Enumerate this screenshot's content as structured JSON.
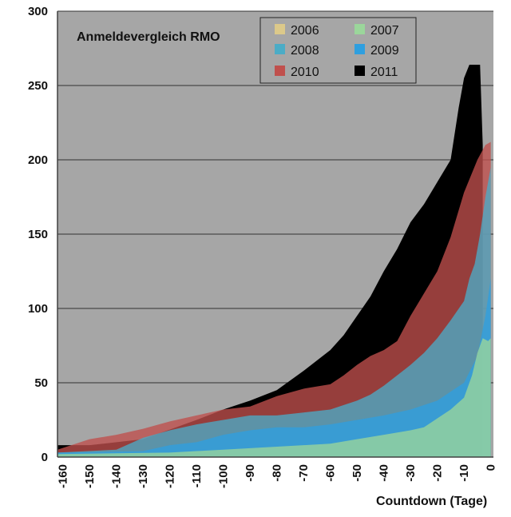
{
  "chart_data": {
    "type": "area",
    "title": "Anmeldevergleich RMO",
    "xlabel": "Countdown (Tage)",
    "ylabel": "",
    "xlim": [
      -162,
      1
    ],
    "ylim": [
      0,
      300
    ],
    "y_ticks": [
      "0",
      "50",
      "100",
      "150",
      "200",
      "250",
      "300"
    ],
    "x_ticks": [
      "-160",
      "-150",
      "-140",
      "-130",
      "-120",
      "-110",
      "-100",
      "-90",
      "-80",
      "-70",
      "-60",
      "-50",
      "-40",
      "-30",
      "-20",
      "-10",
      "0"
    ],
    "grid": true,
    "legend_position": "top-center",
    "plot_background": "#a6a6a6",
    "series": [
      {
        "name": "2011",
        "color": "#000000",
        "x": [
          -162,
          -150,
          -130,
          -110,
          -100,
          -90,
          -80,
          -70,
          -60,
          -55,
          -50,
          -45,
          -40,
          -35,
          -30,
          -25,
          -20,
          -15,
          -12,
          -10,
          -8,
          -7,
          -5,
          -4,
          -3
        ],
        "y": [
          8,
          8,
          12,
          25,
          32,
          38,
          45,
          58,
          72,
          82,
          95,
          108,
          125,
          140,
          158,
          170,
          185,
          200,
          235,
          255,
          264,
          264,
          264,
          264,
          210
        ]
      },
      {
        "name": "2010",
        "color": "#c0504d",
        "x": [
          -162,
          -150,
          -140,
          -130,
          -120,
          -110,
          -100,
          -90,
          -80,
          -70,
          -60,
          -55,
          -50,
          -45,
          -40,
          -35,
          -30,
          -25,
          -20,
          -15,
          -10,
          -5,
          -2,
          0
        ],
        "y": [
          5,
          12,
          15,
          19,
          24,
          28,
          32,
          34,
          41,
          46,
          49,
          55,
          62,
          68,
          72,
          78,
          95,
          110,
          125,
          148,
          178,
          200,
          210,
          212
        ]
      },
      {
        "name": "2008",
        "color": "#4bacc6",
        "x": [
          -162,
          -140,
          -130,
          -120,
          -110,
          -100,
          -90,
          -80,
          -70,
          -60,
          -50,
          -45,
          -40,
          -35,
          -30,
          -25,
          -20,
          -15,
          -10,
          -8,
          -6,
          -4,
          -2,
          0
        ],
        "y": [
          3,
          5,
          13,
          18,
          22,
          25,
          28,
          28,
          30,
          32,
          38,
          42,
          48,
          55,
          62,
          70,
          80,
          92,
          105,
          120,
          130,
          150,
          175,
          195
        ]
      },
      {
        "name": "2009",
        "color": "#2f9fdf",
        "x": [
          -162,
          -130,
          -120,
          -110,
          -100,
          -90,
          -80,
          -70,
          -60,
          -50,
          -40,
          -30,
          -20,
          -15,
          -10,
          -5,
          -2,
          0
        ],
        "y": [
          3,
          4,
          8,
          10,
          15,
          18,
          20,
          20,
          22,
          25,
          28,
          32,
          38,
          44,
          50,
          68,
          95,
          120
        ]
      },
      {
        "name": "2007",
        "color": "#9bd69b",
        "x": [
          -162,
          -120,
          -110,
          -100,
          -90,
          -80,
          -70,
          -60,
          -50,
          -40,
          -30,
          -25,
          -20,
          -15,
          -10,
          -7,
          -5,
          -3,
          -1,
          0
        ],
        "y": [
          2,
          3,
          4,
          5,
          6,
          7,
          8,
          9,
          12,
          15,
          18,
          20,
          26,
          32,
          40,
          55,
          70,
          80,
          78,
          80
        ]
      },
      {
        "name": "2006",
        "color": "#dcc98a",
        "x": [
          -162,
          -10,
          0
        ],
        "y": [
          0,
          0,
          0
        ]
      }
    ]
  }
}
